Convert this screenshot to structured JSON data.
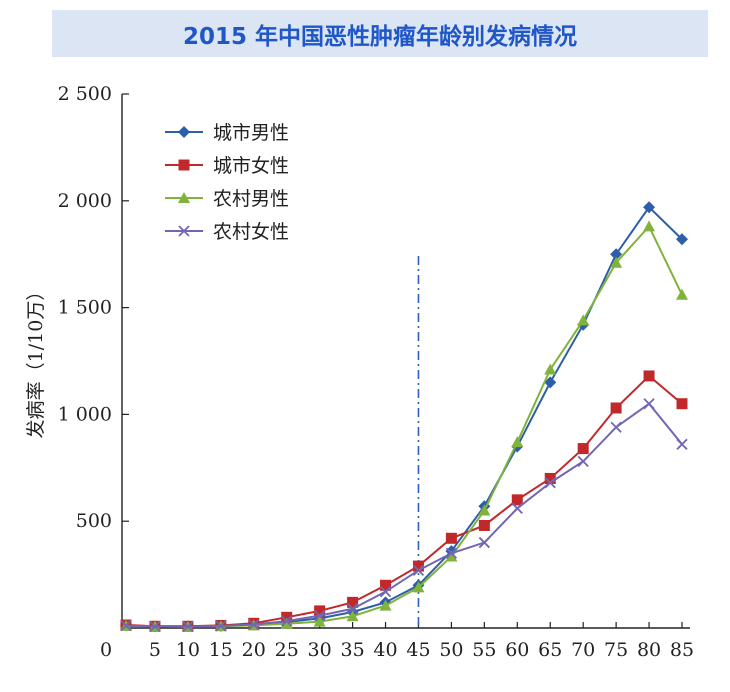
{
  "title": "2015 年中国恶性肿瘤年龄别发病情况",
  "chart_data": {
    "type": "line",
    "title": "2015 年中国恶性肿瘤年龄别发病情况",
    "xlabel": "",
    "ylabel": "发病率（1/10万）",
    "ylim": [
      0,
      2500
    ],
    "xlim": [
      0,
      85
    ],
    "x_ticks": [
      "0",
      "5",
      "10",
      "15",
      "20",
      "25",
      "30",
      "35",
      "40",
      "45",
      "50",
      "55",
      "60",
      "65",
      "70",
      "75",
      "80",
      "85"
    ],
    "y_ticks": [
      {
        "value": 500,
        "label": "500"
      },
      {
        "value": 1000,
        "label": "1 000"
      },
      {
        "value": 1500,
        "label": "1 500"
      },
      {
        "value": 2000,
        "label": "2 000"
      },
      {
        "value": 2500,
        "label": "2 500"
      }
    ],
    "x": [
      0,
      5,
      10,
      15,
      20,
      25,
      30,
      35,
      40,
      45,
      50,
      55,
      60,
      65,
      70,
      75,
      80,
      85
    ],
    "reference_line_x": 45,
    "legend_position": "top-left",
    "series": [
      {
        "name": "城市男性",
        "color": "#2d5fa8",
        "marker": "diamond",
        "values": [
          12,
          8,
          8,
          10,
          15,
          28,
          45,
          75,
          120,
          200,
          360,
          570,
          850,
          1150,
          1420,
          1750,
          1970,
          1820
        ]
      },
      {
        "name": "城市女性",
        "color": "#c0282a",
        "marker": "square",
        "values": [
          14,
          8,
          8,
          12,
          22,
          50,
          80,
          120,
          200,
          290,
          420,
          480,
          600,
          700,
          840,
          1030,
          1180,
          1050
        ]
      },
      {
        "name": "农村男性",
        "color": "#80b33c",
        "marker": "triangle",
        "values": [
          10,
          7,
          6,
          8,
          12,
          20,
          30,
          55,
          105,
          190,
          335,
          550,
          870,
          1210,
          1440,
          1710,
          1880,
          1560
        ]
      },
      {
        "name": "农村女性",
        "color": "#7266b2",
        "marker": "x",
        "values": [
          11,
          7,
          7,
          10,
          16,
          32,
          58,
          90,
          170,
          270,
          350,
          400,
          560,
          680,
          780,
          940,
          1050,
          860
        ]
      }
    ]
  }
}
